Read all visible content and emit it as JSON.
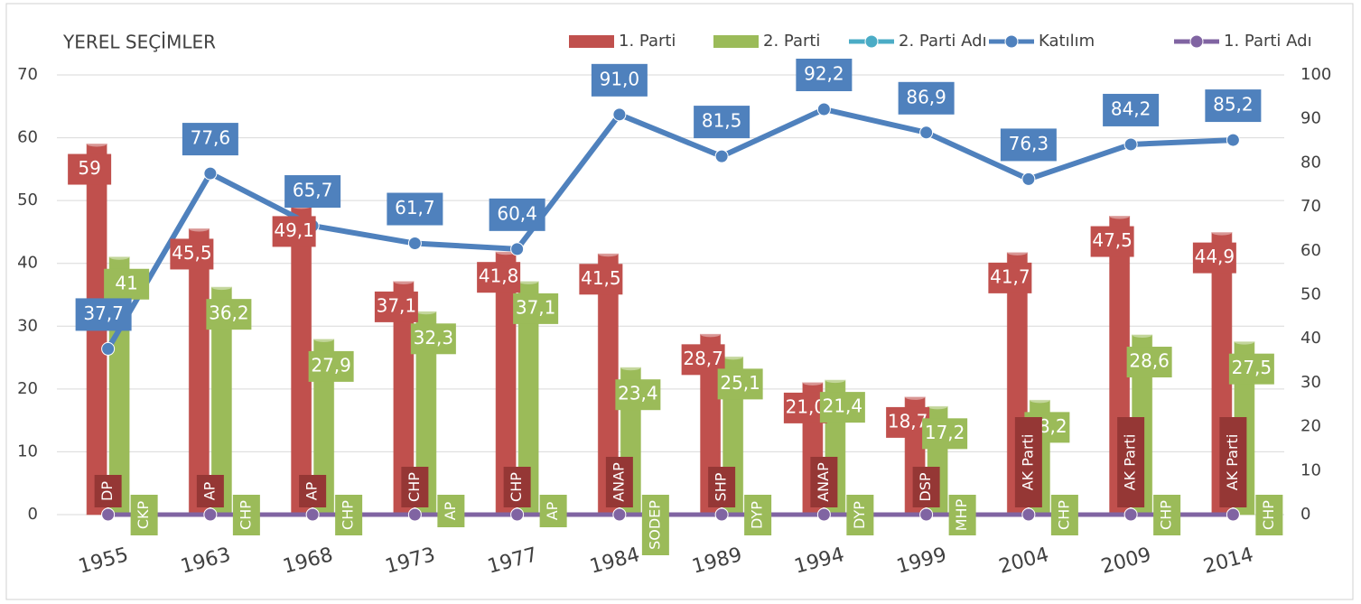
{
  "chart_data": {
    "type": "bar",
    "title": "YEREL SEÇİMLER",
    "categories": [
      "1955",
      "1963",
      "1968",
      "1973",
      "1977",
      "1984",
      "1989",
      "1994",
      "1999",
      "2004",
      "2009",
      "2014"
    ],
    "series": [
      {
        "name": "1. Parti",
        "type": "bar",
        "color": "#c0504d",
        "values": [
          59,
          45.5,
          49.1,
          37.1,
          41.8,
          41.5,
          28.7,
          21.0,
          18.7,
          41.7,
          47.5,
          44.9
        ],
        "value_labels": [
          "59",
          "45,5",
          "49,1",
          "37,1",
          "41,8",
          "41,5",
          "28,7",
          "21,0",
          "18,7",
          "41,7",
          "47,5",
          "44,9"
        ]
      },
      {
        "name": "2. Parti",
        "type": "bar",
        "color": "#9bbb59",
        "values": [
          41,
          36.2,
          27.9,
          32.3,
          37.1,
          23.4,
          25.1,
          21.4,
          17.2,
          18.2,
          28.6,
          27.5
        ],
        "value_labels": [
          "41",
          "36,2",
          "27,9",
          "32,3",
          "37,1",
          "23,4",
          "25,1",
          "21,4",
          "17,2",
          "18,2",
          "28,6",
          "27,5"
        ]
      },
      {
        "name": "2. Parti Adı",
        "type": "line",
        "color": "#4bacc6",
        "values": [
          0,
          0,
          0,
          0,
          0,
          0,
          0,
          0,
          0,
          0,
          0,
          0
        ],
        "point_labels": [
          "CKP",
          "CHP",
          "CHP",
          "AP",
          "AP",
          "SODEP",
          "DYP",
          "DYP",
          "MHP",
          "CHP",
          "CHP",
          "CHP"
        ]
      },
      {
        "name": "Katılım",
        "type": "line",
        "axis": "y2",
        "color": "#4f81bd",
        "values": [
          37.7,
          77.6,
          65.7,
          61.7,
          60.4,
          91.0,
          81.5,
          92.2,
          86.9,
          76.3,
          84.2,
          85.2
        ],
        "value_labels": [
          "37,7",
          "77,6",
          "65,7",
          "61,7",
          "60,4",
          "91,0",
          "81,5",
          "92,2",
          "86,9",
          "76,3",
          "84,2",
          "85,2"
        ]
      },
      {
        "name": "1. Parti Adı",
        "type": "line",
        "color": "#8064a2",
        "values": [
          0,
          0,
          0,
          0,
          0,
          0,
          0,
          0,
          0,
          0,
          0,
          0
        ],
        "point_labels": [
          "DP",
          "AP",
          "AP",
          "CHP",
          "CHP",
          "ANAP",
          "SHP",
          "ANAP",
          "DSP",
          "AK Parti",
          "AK Parti",
          "AK Parti"
        ]
      }
    ],
    "ylim": [
      0,
      70
    ],
    "yticks": [
      0,
      10,
      20,
      30,
      40,
      50,
      60,
      70
    ],
    "y2lim": [
      0,
      100
    ],
    "y2ticks": [
      0,
      10,
      20,
      30,
      40,
      50,
      60,
      70,
      80,
      90,
      100
    ],
    "grid": true,
    "legend": "top"
  }
}
